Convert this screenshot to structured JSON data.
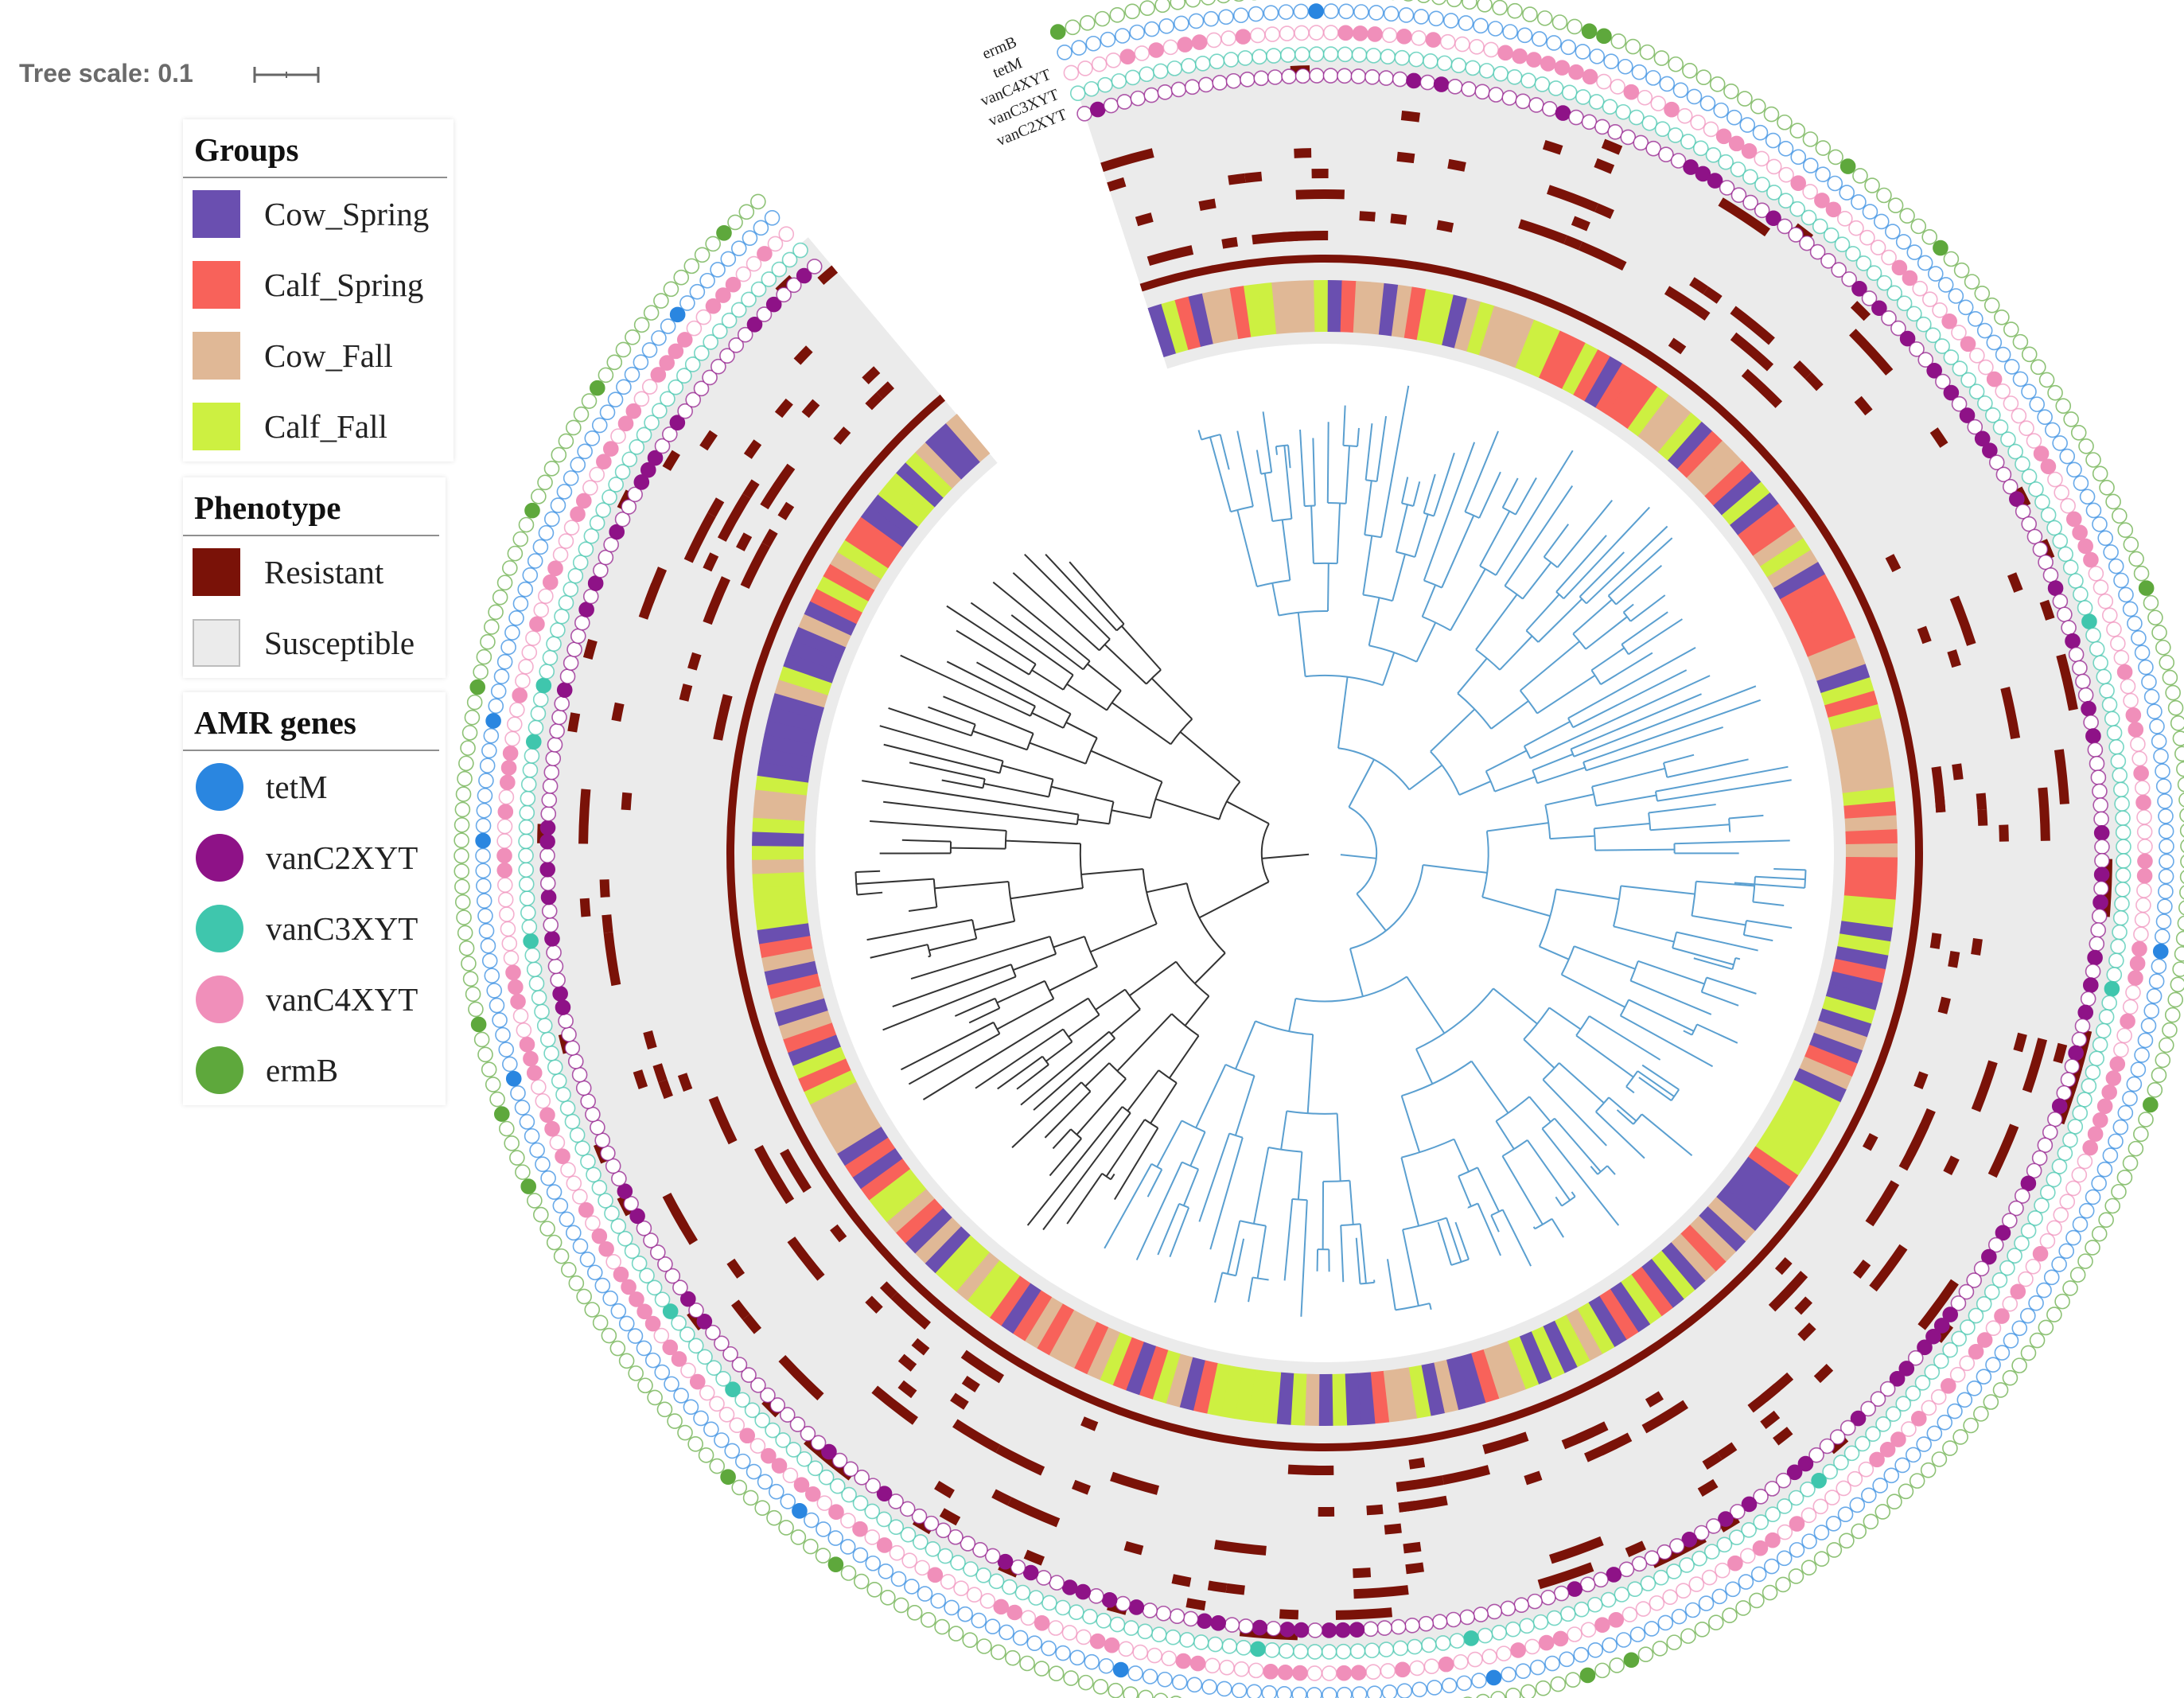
{
  "tree_scale": {
    "label": "Tree scale: 0.1"
  },
  "legend": {
    "groups": {
      "title": "Groups",
      "items": [
        {
          "label": "Cow_Spring",
          "color": "#6a4fb0"
        },
        {
          "label": "Calf_Spring",
          "color": "#f8625a"
        },
        {
          "label": "Cow_Fall",
          "color": "#e0b896"
        },
        {
          "label": "Calf_Fall",
          "color": "#cdf041"
        }
      ]
    },
    "phenotype": {
      "title": "Phenotype",
      "items": [
        {
          "label": "Resistant",
          "color": "#7a1208"
        },
        {
          "label": "Susceptible",
          "color": "#ebebeb"
        }
      ]
    },
    "amr_genes": {
      "title": "AMR genes",
      "items": [
        {
          "label": "tetM",
          "color": "#2a86e0"
        },
        {
          "label": "vanC2XYT",
          "color": "#8e1287"
        },
        {
          "label": "vanC3XYT",
          "color": "#3fc6ad"
        },
        {
          "label": "vanC4XYT",
          "color": "#f08fba"
        },
        {
          "label": "ermB",
          "color": "#5ea83c"
        }
      ]
    }
  },
  "ring_labels": [
    "ermB",
    "tetM",
    "vanC4XYT",
    "vanC3XYT",
    "vanC2XYT"
  ],
  "colors": {
    "clade_blue": "#5a9fd0",
    "clade_dark": "#333333",
    "background_band": "#ebebeb",
    "resistant": "#7a1208"
  }
}
